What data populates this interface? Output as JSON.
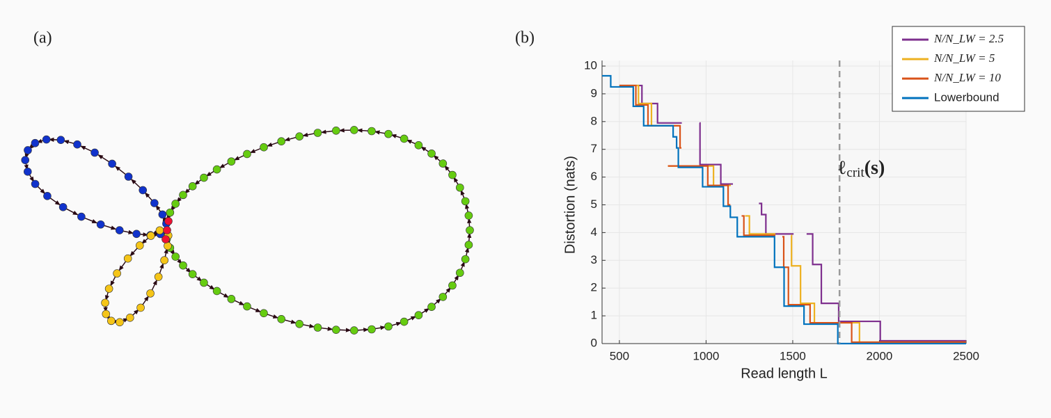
{
  "panel_labels": [
    "(a)",
    "(b)"
  ],
  "chart_data": {
    "type": "line",
    "step": "post",
    "xlabel": "Read length L",
    "ylabel": "Distortion (nats)",
    "xlim": [
      400,
      2500
    ],
    "ylim": [
      0,
      10
    ],
    "xticks": [
      500,
      1000,
      1500,
      2000,
      2500
    ],
    "yticks": [
      0,
      1,
      2,
      3,
      4,
      5,
      6,
      7,
      8,
      9,
      10
    ],
    "grid": true,
    "legend": "upper right",
    "annotation": {
      "parts": [
        "ℓ",
        "crit",
        "(s)"
      ],
      "x": 1770
    },
    "series": [
      {
        "name": "N/N_LW = 2.5",
        "color": "#7e2f8e",
        "x": [
          500,
          630,
          720,
          860,
          962,
          965,
          1085,
          1155,
          1305,
          1320,
          1345,
          1505,
          1580,
          1615,
          1665,
          1765,
          2005,
          2500
        ],
        "values": [
          9.3,
          8.65,
          7.95,
          null,
          7.95,
          6.45,
          5.75,
          null,
          5.05,
          4.65,
          3.95,
          null,
          3.95,
          2.85,
          1.45,
          0.8,
          0.1,
          0.1
        ]
      },
      {
        "name": "N/N_LW = 5",
        "color": "#edb120",
        "x": [
          500,
          610,
          685,
          842,
          780,
          1043,
          1143,
          1225,
          1250,
          1400,
          1492,
          1493,
          1545,
          1625,
          1885,
          2500
        ],
        "values": [
          9.3,
          8.65,
          7.85,
          null,
          6.4,
          5.7,
          null,
          4.6,
          3.95,
          null,
          3.9,
          2.8,
          1.45,
          0.75,
          0.05,
          0.05
        ]
      },
      {
        "name": "N/N_LW = 10",
        "color": "#d95319",
        "x": [
          500,
          595,
          665,
          850,
          858,
          780,
          1010,
          1127,
          1140,
          1205,
          1218,
          1400,
          1440,
          1448,
          1475,
          1600,
          1840,
          2500
        ],
        "values": [
          9.3,
          8.6,
          7.85,
          7.05,
          null,
          6.4,
          5.7,
          5.0,
          null,
          4.6,
          3.9,
          null,
          3.85,
          2.75,
          1.4,
          0.75,
          0.05,
          0.05
        ]
      },
      {
        "name": "Lowerbound",
        "color": "#0072bd",
        "x": [
          400,
          450,
          580,
          640,
          810,
          830,
          840,
          980,
          1100,
          1140,
          1180,
          1395,
          1450,
          1565,
          1760,
          2500
        ],
        "values": [
          9.65,
          9.25,
          8.55,
          7.85,
          7.45,
          7.05,
          6.35,
          5.65,
          4.95,
          4.55,
          3.85,
          2.75,
          1.35,
          0.7,
          0,
          0
        ]
      }
    ]
  }
}
